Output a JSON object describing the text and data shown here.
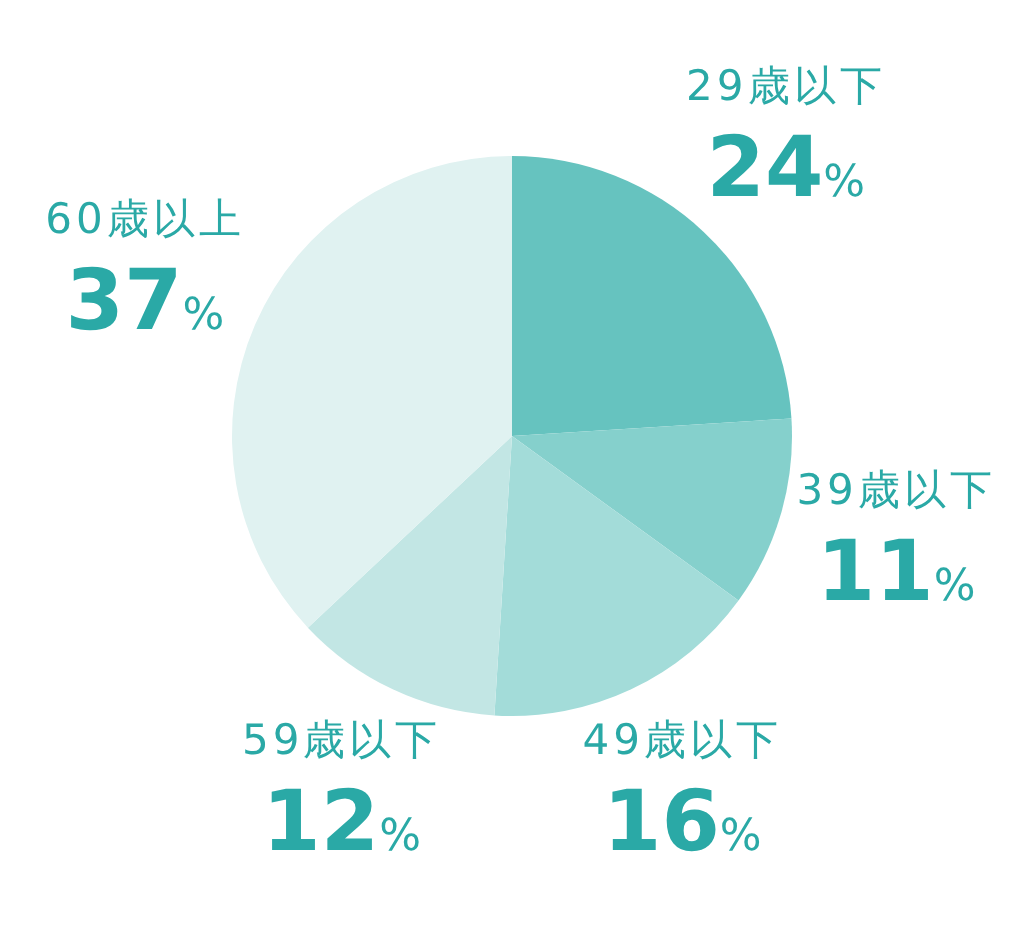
{
  "chart_data": {
    "type": "pie",
    "categories": [
      "29歳以下",
      "39歳以下",
      "49歳以下",
      "59歳以下",
      "60歳以上"
    ],
    "values": [
      24,
      11,
      16,
      12,
      37
    ],
    "colors": [
      "#66c3bf",
      "#85d0cc",
      "#a3dcd9",
      "#c2e6e4",
      "#e0f2f1"
    ],
    "value_labels": [
      "24%",
      "11%",
      "16%",
      "12%",
      "37%"
    ]
  }
}
